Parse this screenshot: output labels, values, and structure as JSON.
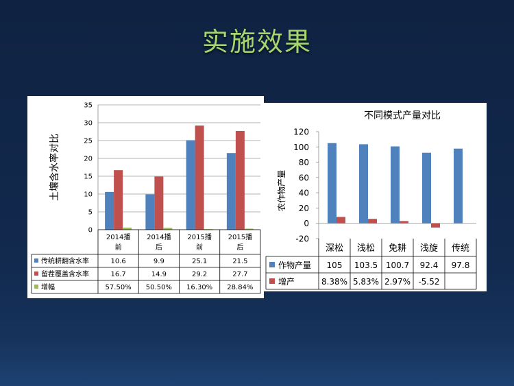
{
  "slide": {
    "title": "实施效果"
  },
  "chart_data": [
    {
      "type": "bar",
      "title": "",
      "ylabel": "土壤含水率对比",
      "ylim": [
        0,
        35
      ],
      "yticks": [
        0,
        5,
        10,
        15,
        20,
        25,
        30,
        35
      ],
      "categories": [
        [
          "2014播",
          "前"
        ],
        [
          "2014播",
          "后"
        ],
        [
          "2015播",
          "前"
        ],
        [
          "2015播",
          "后"
        ]
      ],
      "series": [
        {
          "name": "传统耕翻含水率",
          "values": [
            10.6,
            9.9,
            25.1,
            21.5
          ],
          "labels": [
            "10.6",
            "9.9",
            "25.1",
            "21.5"
          ],
          "color": "#4f81bd"
        },
        {
          "name": "留茬覆盖含水率",
          "values": [
            16.7,
            14.9,
            29.2,
            27.7
          ],
          "labels": [
            "16.7",
            "14.9",
            "29.2",
            "27.7"
          ],
          "color": "#c0504d"
        },
        {
          "name": "增幅",
          "values": [
            0.575,
            0.505,
            0.163,
            0.2884
          ],
          "labels": [
            "57.50%",
            "50.50%",
            "16.30%",
            "28.84%"
          ],
          "color": "#9bbb59"
        }
      ],
      "grid": true,
      "legend": "data-table"
    },
    {
      "type": "bar",
      "title": "不同模式产量对比",
      "ylabel": "农作物产量",
      "ylim": [
        -20,
        120
      ],
      "yticks": [
        -20,
        0,
        20,
        40,
        60,
        80,
        100,
        120
      ],
      "categories": [
        "深松",
        "浅松",
        "免耕",
        "浅旋",
        "传统"
      ],
      "series": [
        {
          "name": "作物产量",
          "values": [
            105,
            103.5,
            100.7,
            92.4,
            97.8
          ],
          "labels": [
            "105",
            "103.5",
            "100.7",
            "92.4",
            "97.8"
          ],
          "color": "#4f81bd"
        },
        {
          "name": "增产",
          "values": [
            8.38,
            5.83,
            2.97,
            -5.52,
            0
          ],
          "labels": [
            "8.38%",
            "5.83%",
            "2.97%",
            "-5.52",
            ""
          ],
          "color": "#c0504d"
        }
      ],
      "grid": false,
      "legend": "data-table"
    }
  ]
}
